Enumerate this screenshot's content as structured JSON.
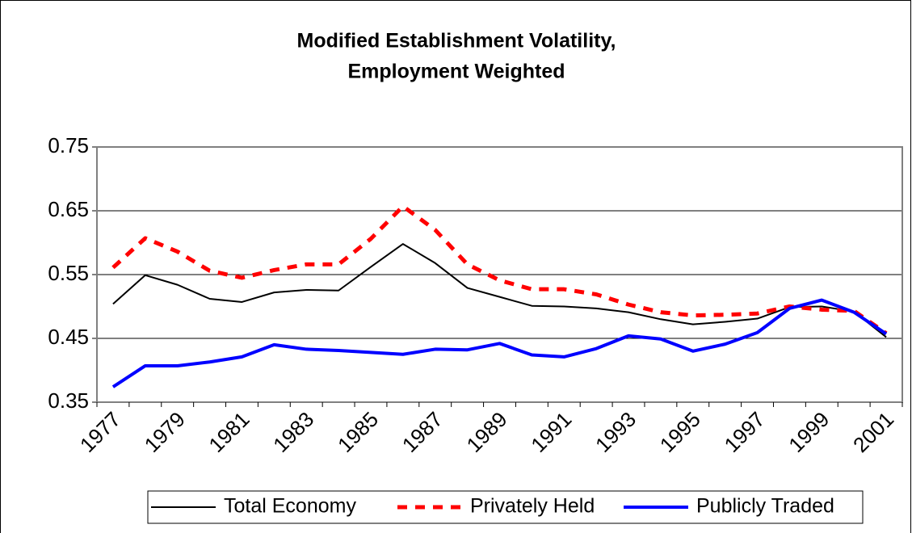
{
  "chart_data": {
    "type": "line",
    "title": [
      "Modified Establishment Volatility,",
      "Employment Weighted"
    ],
    "categories": [
      "1977",
      null,
      "1979",
      null,
      "1981",
      null,
      "1983",
      null,
      "1985",
      null,
      "1987",
      null,
      "1989",
      null,
      "1991",
      null,
      "1993",
      null,
      "1995",
      null,
      "1997",
      null,
      "1999",
      null,
      "2001"
    ],
    "series": [
      {
        "name": "Total Economy",
        "color": "#000000",
        "width": 2,
        "dash": false,
        "values": [
          0.504,
          0.549,
          0.534,
          0.512,
          0.507,
          0.522,
          0.526,
          0.525,
          0.562,
          0.598,
          0.568,
          0.529,
          0.515,
          0.501,
          0.5,
          0.497,
          0.491,
          0.48,
          0.472,
          0.476,
          0.481,
          0.499,
          0.5,
          0.492,
          0.452
        ]
      },
      {
        "name": "Privately Held",
        "color": "#ff0000",
        "width": 5,
        "dash": true,
        "values": [
          0.561,
          0.607,
          0.586,
          0.556,
          0.545,
          0.557,
          0.566,
          0.566,
          0.606,
          0.657,
          0.62,
          0.566,
          0.541,
          0.527,
          0.527,
          0.519,
          0.503,
          0.491,
          0.486,
          0.487,
          0.489,
          0.5,
          0.495,
          0.493,
          0.458
        ]
      },
      {
        "name": "Publicly Traded",
        "color": "#0000ff",
        "width": 4,
        "dash": false,
        "values": [
          0.374,
          0.407,
          0.407,
          0.413,
          0.421,
          0.44,
          0.433,
          0.431,
          0.428,
          0.425,
          0.433,
          0.432,
          0.442,
          0.424,
          0.421,
          0.434,
          0.454,
          0.449,
          0.43,
          0.441,
          0.459,
          0.497,
          0.51,
          0.491,
          0.457
        ]
      }
    ],
    "ylim": [
      0.35,
      0.75
    ],
    "yticks": [
      0.35,
      0.45,
      0.55,
      0.65,
      0.75
    ],
    "grid": true,
    "legend": "bottom"
  }
}
